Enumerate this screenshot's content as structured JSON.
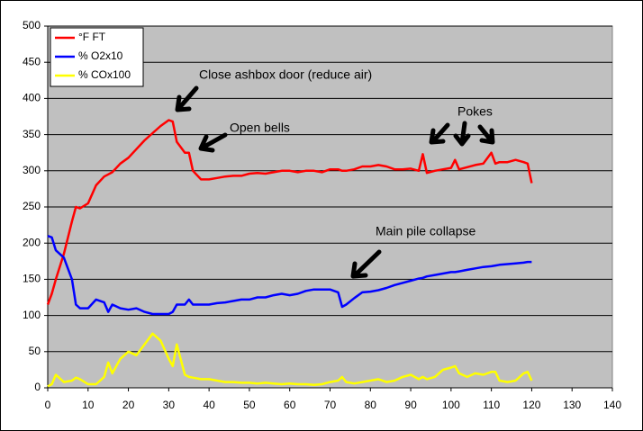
{
  "chart_data": {
    "type": "line",
    "x": [
      0,
      1,
      2,
      4,
      6,
      7,
      8,
      10,
      12,
      14,
      15,
      16,
      18,
      20,
      22,
      24,
      26,
      28,
      30,
      31,
      32,
      34,
      35,
      36,
      38,
      40,
      42,
      44,
      46,
      48,
      50,
      52,
      54,
      56,
      58,
      60,
      62,
      64,
      66,
      68,
      70,
      72,
      73,
      74,
      76,
      78,
      80,
      82,
      84,
      86,
      88,
      90,
      92,
      93,
      94,
      96,
      98,
      100,
      101,
      102,
      104,
      106,
      108,
      110,
      111,
      112,
      114,
      116,
      118,
      119,
      120
    ],
    "series": [
      {
        "name": "°F FT",
        "color": "#ff0000",
        "values": [
          115,
          130,
          150,
          185,
          230,
          250,
          248,
          255,
          280,
          292,
          295,
          298,
          310,
          318,
          330,
          342,
          352,
          362,
          370,
          368,
          340,
          325,
          325,
          300,
          288,
          288,
          290,
          292,
          293,
          293,
          296,
          297,
          296,
          298,
          300,
          300,
          298,
          300,
          300,
          298,
          302,
          302,
          300,
          300,
          302,
          306,
          306,
          308,
          306,
          302,
          302,
          303,
          300,
          323,
          297,
          300,
          302,
          304,
          315,
          302,
          305,
          308,
          310,
          325,
          310,
          312,
          312,
          315,
          312,
          310,
          283
        ]
      },
      {
        "name": "% O2x10",
        "color": "#0000ff",
        "values": [
          210,
          208,
          190,
          180,
          150,
          115,
          110,
          110,
          122,
          118,
          105,
          115,
          110,
          108,
          110,
          105,
          102,
          102,
          102,
          105,
          115,
          115,
          122,
          115,
          115,
          115,
          117,
          118,
          120,
          122,
          122,
          125,
          125,
          128,
          130,
          128,
          130,
          134,
          136,
          136,
          136,
          132,
          112,
          115,
          124,
          132,
          133,
          135,
          138,
          142,
          145,
          148,
          151,
          152,
          154,
          156,
          158,
          160,
          160,
          161,
          163,
          165,
          167,
          168,
          169,
          170,
          171,
          172,
          173,
          174,
          174
        ]
      },
      {
        "name": "% COx100",
        "color": "#ffff00",
        "values": [
          2,
          5,
          18,
          8,
          10,
          14,
          12,
          5,
          5,
          15,
          35,
          20,
          40,
          50,
          45,
          60,
          75,
          65,
          40,
          30,
          60,
          18,
          15,
          14,
          12,
          12,
          10,
          8,
          8,
          7,
          7,
          6,
          7,
          6,
          5,
          6,
          5,
          5,
          4,
          5,
          8,
          10,
          15,
          8,
          6,
          8,
          10,
          12,
          8,
          10,
          15,
          18,
          12,
          15,
          12,
          15,
          25,
          28,
          30,
          20,
          15,
          20,
          18,
          22,
          22,
          10,
          8,
          10,
          20,
          22,
          10
        ]
      }
    ],
    "xlim": [
      0,
      140
    ],
    "xticks": [
      0,
      10,
      20,
      30,
      40,
      50,
      60,
      70,
      80,
      90,
      100,
      110,
      120,
      130,
      140
    ],
    "ylim": [
      0,
      500
    ],
    "yticks": [
      0,
      50,
      100,
      150,
      200,
      250,
      300,
      350,
      400,
      450,
      500
    ],
    "grid": true,
    "legend": "top-left",
    "background": "#c0c0c0",
    "annotations": [
      "Close ashbox door (reduce air)",
      "Open bells",
      "Pokes",
      "Main pile collapse"
    ]
  }
}
